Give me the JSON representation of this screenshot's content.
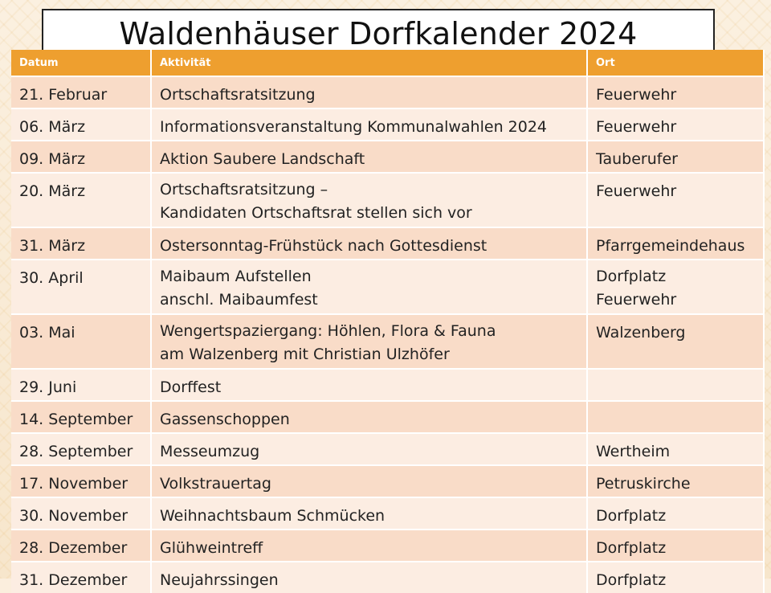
{
  "title": "Waldenhäuser Dorfkalender 2024",
  "table": {
    "headers": {
      "date": "Datum",
      "activity": "Aktivität",
      "location": "Ort"
    },
    "rows": [
      {
        "date": "21. Februar",
        "activity": [
          "Ortschaftsratsitzung"
        ],
        "location": [
          "Feuerwehr"
        ]
      },
      {
        "date": "06. März",
        "activity": [
          "Informationsveranstaltung Kommunalwahlen 2024"
        ],
        "location": [
          "Feuerwehr"
        ]
      },
      {
        "date": "09. März",
        "activity": [
          "Aktion Saubere Landschaft"
        ],
        "location": [
          "Tauberufer"
        ]
      },
      {
        "date": "20. März",
        "activity": [
          "Ortschaftsratsitzung –",
          "Kandidaten Ortschaftsrat stellen sich vor"
        ],
        "location": [
          "Feuerwehr"
        ]
      },
      {
        "date": "31. März",
        "activity": [
          "Ostersonntag-Frühstück nach Gottesdienst"
        ],
        "location": [
          "Pfarrgemeindehaus"
        ]
      },
      {
        "date": "30. April",
        "activity": [
          "Maibaum Aufstellen",
          "anschl. Maibaumfest"
        ],
        "location": [
          "Dorfplatz",
          "Feuerwehr"
        ]
      },
      {
        "date": "03. Mai",
        "activity": [
          "Wengertspaziergang: Höhlen, Flora & Fauna",
          "am Walzenberg mit Christian Ulzhöfer"
        ],
        "location": [
          "Walzenberg"
        ]
      },
      {
        "date": "29. Juni",
        "activity": [
          "Dorffest"
        ],
        "location": []
      },
      {
        "date": "14. September",
        "activity": [
          "Gassenschoppen"
        ],
        "location": []
      },
      {
        "date": "28. September",
        "activity": [
          "Messeumzug"
        ],
        "location": [
          "Wertheim"
        ]
      },
      {
        "date": "17. November",
        "activity": [
          "Volkstrauertag"
        ],
        "location": [
          "Petruskirche"
        ]
      },
      {
        "date": "30. November",
        "activity": [
          "Weihnachtsbaum Schmücken"
        ],
        "location": [
          "Dorfplatz"
        ]
      },
      {
        "date": "28. Dezember",
        "activity": [
          "Glühweintreff"
        ],
        "location": [
          "Dorfplatz"
        ]
      },
      {
        "date": "31. Dezember",
        "activity": [
          "Neujahrssingen"
        ],
        "location": [
          "Dorfplatz"
        ]
      }
    ]
  }
}
